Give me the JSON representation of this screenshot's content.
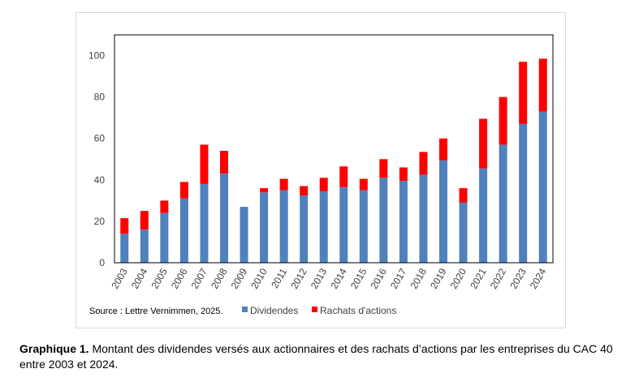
{
  "chart_data": {
    "type": "bar",
    "stacked": true,
    "categories": [
      "2003",
      "2004",
      "2005",
      "2006",
      "2007",
      "2008",
      "2009",
      "2010",
      "2011",
      "2012",
      "2013",
      "2014",
      "2015",
      "2016",
      "2017",
      "2018",
      "2019",
      "2020",
      "2021",
      "2022",
      "2023",
      "2024"
    ],
    "series": [
      {
        "name": "Dividendes",
        "color": "#4f81bd",
        "values": [
          14,
          16,
          24,
          31,
          38,
          43,
          27,
          34,
          35,
          32.5,
          34.5,
          36.5,
          35,
          41,
          39.5,
          42.5,
          49.5,
          29,
          45.5,
          57,
          67,
          73
        ]
      },
      {
        "name": "Rachats d'actions",
        "color": "#ff0000",
        "values": [
          7.5,
          9,
          6,
          8,
          19,
          11,
          0,
          2,
          5.5,
          4.5,
          6.5,
          10,
          5.5,
          9,
          6.5,
          11,
          10.5,
          7,
          24,
          23,
          30,
          25.5
        ]
      }
    ],
    "yticks": [
      0,
      20,
      40,
      60,
      80,
      100
    ],
    "ylim": [
      0,
      110
    ],
    "grid": false,
    "legend": "bottom"
  },
  "source": "Source : Lettre Vernimmen, 2025.",
  "caption": {
    "label": "Graphique 1.",
    "text": " Montant des dividendes versés aux actionnaires et des rachats d’actions par les entreprises du CAC 40 entre 2003 et 2024."
  }
}
